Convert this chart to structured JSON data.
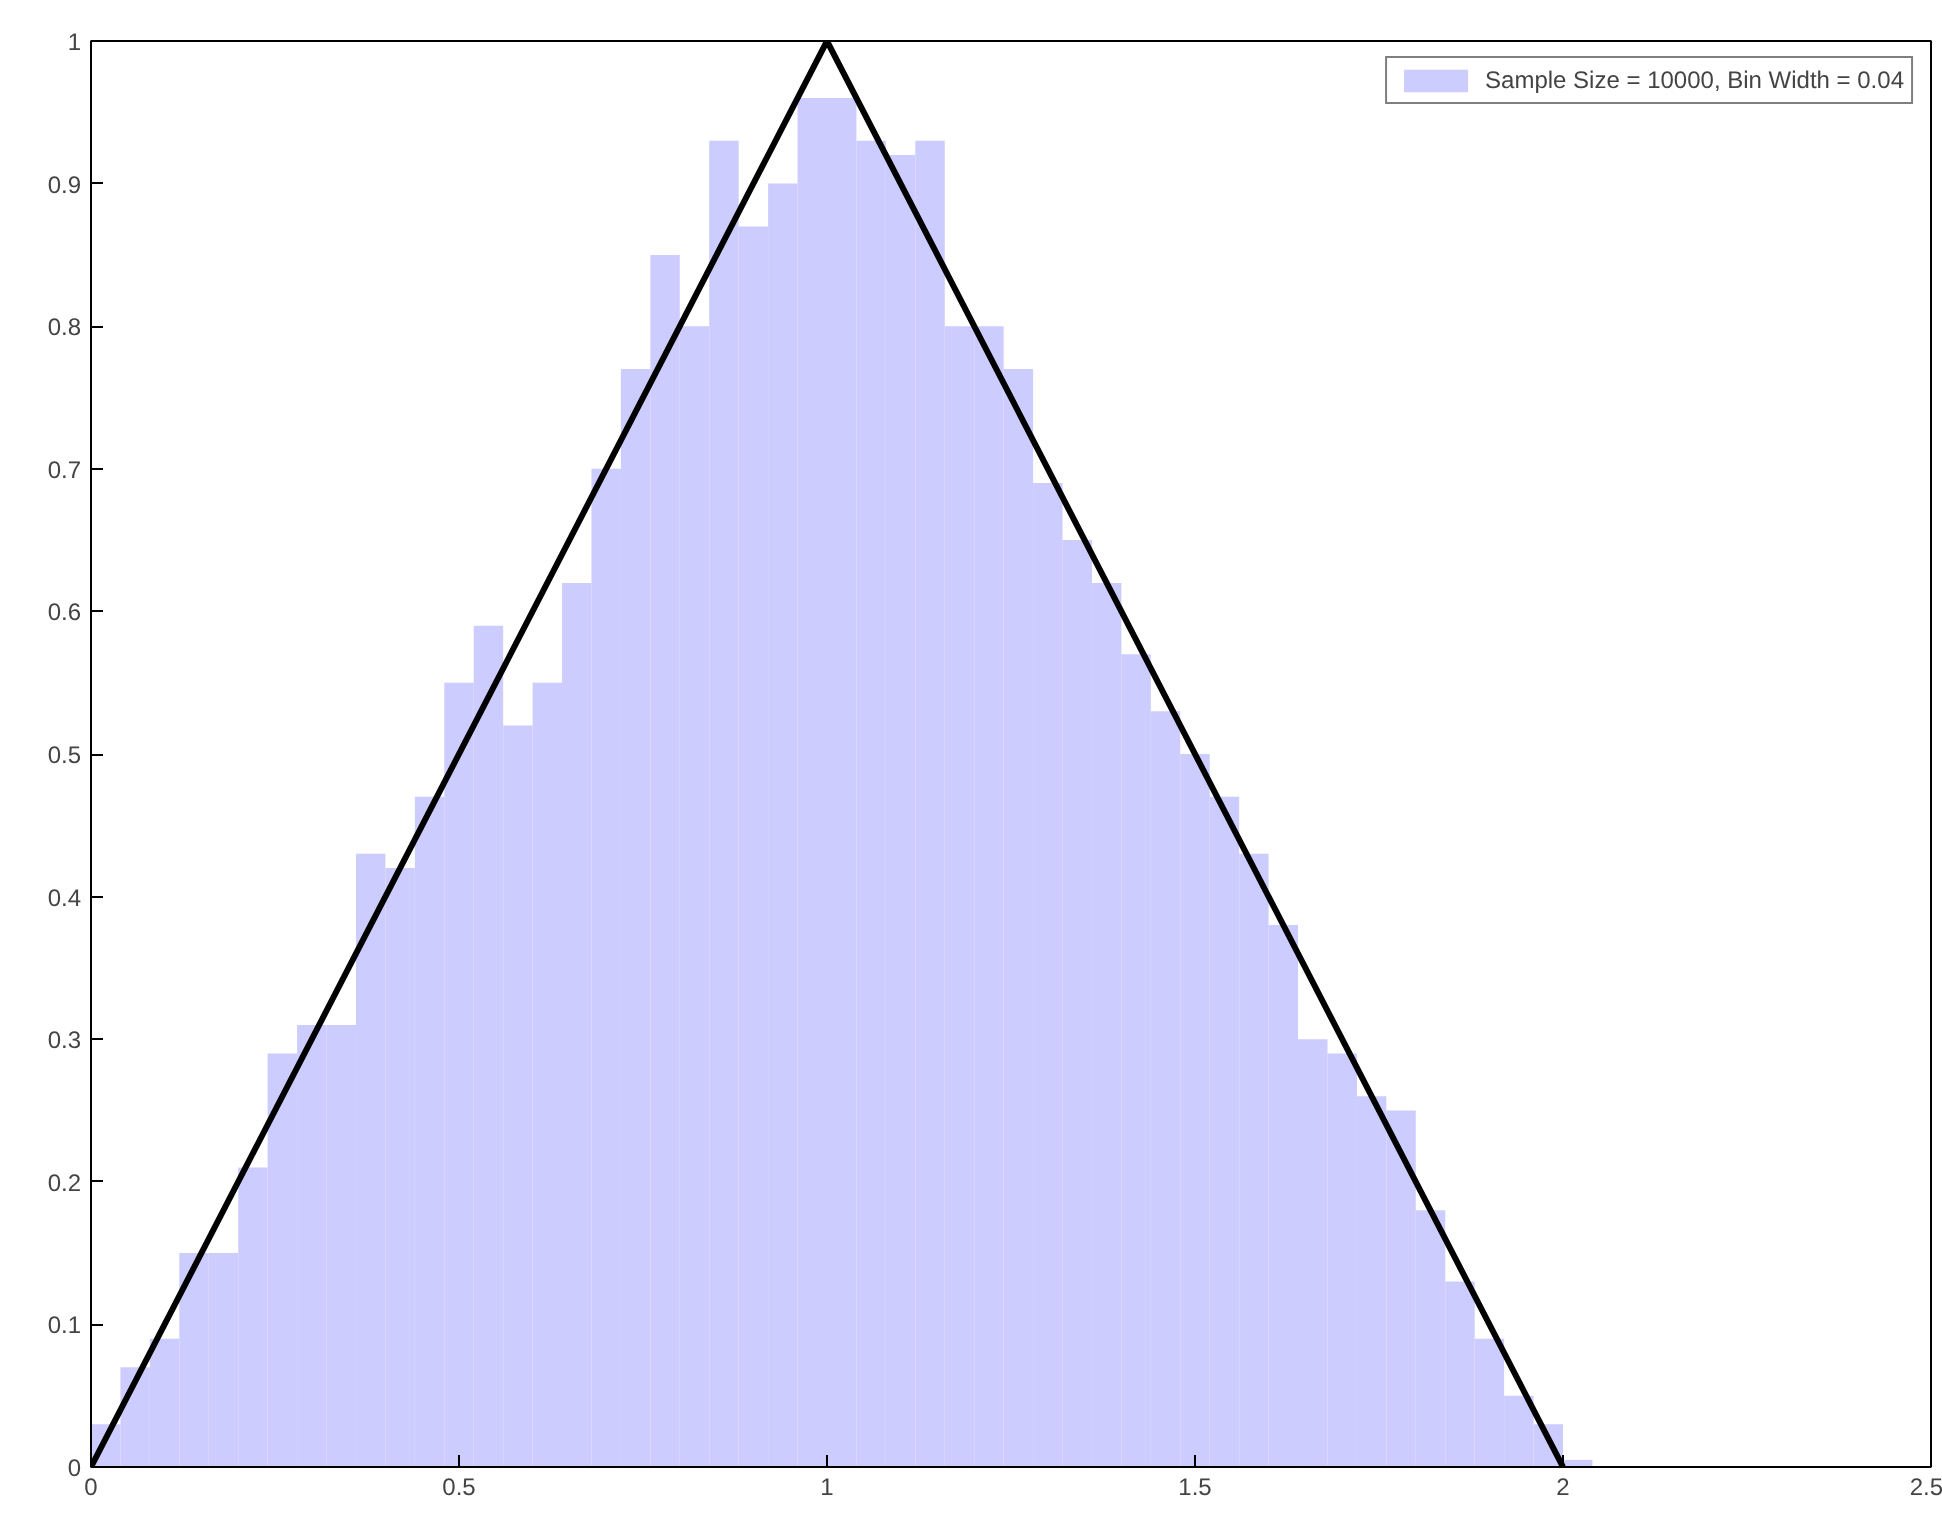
{
  "chart_data": {
    "type": "histogram",
    "bins": [
      0,
      0.04,
      0.08,
      0.12,
      0.16,
      0.2,
      0.24,
      0.28,
      0.32,
      0.36,
      0.4,
      0.44,
      0.48,
      0.52,
      0.56,
      0.6,
      0.64,
      0.68,
      0.72,
      0.76,
      0.8,
      0.84,
      0.88,
      0.92,
      0.96,
      1.0,
      1.04,
      1.08,
      1.12,
      1.16,
      1.2,
      1.24,
      1.28,
      1.32,
      1.36,
      1.4,
      1.44,
      1.48,
      1.52,
      1.56,
      1.6,
      1.64,
      1.68,
      1.72,
      1.76,
      1.8,
      1.84,
      1.88,
      1.92,
      1.96,
      2.0,
      2.04
    ],
    "series": [
      {
        "name": "Sample Size = 10000, Bin Width = 0.04",
        "color": "#ccccff",
        "values": [
          0.03,
          0.07,
          0.09,
          0.15,
          0.15,
          0.21,
          0.29,
          0.31,
          0.31,
          0.43,
          0.42,
          0.47,
          0.55,
          0.59,
          0.52,
          0.55,
          0.62,
          0.7,
          0.77,
          0.85,
          0.8,
          0.93,
          0.87,
          0.9,
          0.96,
          0.96,
          0.93,
          0.92,
          0.93,
          0.8,
          0.8,
          0.77,
          0.69,
          0.65,
          0.62,
          0.57,
          0.53,
          0.5,
          0.47,
          0.43,
          0.38,
          0.3,
          0.29,
          0.26,
          0.25,
          0.18,
          0.13,
          0.09,
          0.05,
          0.03,
          0.005
        ]
      },
      {
        "type": "line",
        "color": "#000000",
        "x": [
          0,
          1,
          2
        ],
        "values": [
          0,
          1,
          0
        ]
      }
    ],
    "xlim": [
      0,
      2.5
    ],
    "xticks": [
      0,
      0.5,
      1,
      1.5,
      2,
      2.5
    ],
    "ylim": [
      0,
      1
    ],
    "yticks": [
      0,
      0.1,
      0.2,
      0.3,
      0.4,
      0.5,
      0.6,
      0.7,
      0.8,
      0.9,
      1
    ],
    "grid": false,
    "legend": "top right"
  }
}
